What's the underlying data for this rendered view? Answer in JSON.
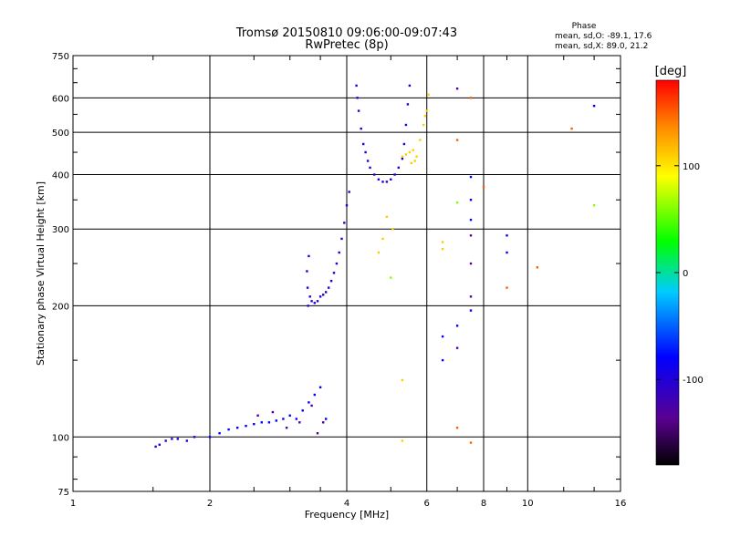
{
  "chart_data": {
    "type": "scatter",
    "title": "Tromsø 20150810 09:06:00-09:07:43",
    "subtitle": "RwPretec (8p)",
    "xlabel": "Frequency [MHz]",
    "ylabel": "Stationary phase Virtual Height [km]",
    "x_scale": "log",
    "y_scale": "log",
    "xlim": [
      1,
      16
    ],
    "ylim": [
      75,
      750
    ],
    "x_ticks": [
      {
        "value": 1,
        "label": "1"
      },
      {
        "value": 2,
        "label": "2"
      },
      {
        "value": 4,
        "label": "4"
      },
      {
        "value": 6,
        "label": "6"
      },
      {
        "value": 8,
        "label": "8"
      },
      {
        "value": 10,
        "label": "10"
      },
      {
        "value": 16,
        "label": "16"
      }
    ],
    "y_ticks": [
      {
        "value": 75,
        "label": "75"
      },
      {
        "value": 100,
        "label": "100"
      },
      {
        "value": 200,
        "label": "200"
      },
      {
        "value": 300,
        "label": "300"
      },
      {
        "value": 400,
        "label": "400"
      },
      {
        "value": 500,
        "label": "500"
      },
      {
        "value": 600,
        "label": "600"
      },
      {
        "value": 750,
        "label": "750"
      }
    ],
    "grid": true,
    "phase_stats": {
      "heading": "Phase",
      "line_o": "mean, sd,O: -89.1, 17.6",
      "line_x": "mean, sd,X:  89.0, 21.2"
    },
    "colorbar": {
      "label": "[deg]",
      "range": [
        -180,
        180
      ],
      "ticks": [
        {
          "value": 100,
          "label": "100"
        },
        {
          "value": 0,
          "label": "0"
        },
        {
          "value": -100,
          "label": "-100"
        }
      ],
      "colormap": "rainbow"
    },
    "series": [
      {
        "note_phase_deg": -100,
        "points": [
          [
            1.52,
            95
          ],
          [
            1.55,
            96
          ],
          [
            1.6,
            98
          ],
          [
            1.65,
            99
          ],
          [
            1.7,
            99
          ],
          [
            1.78,
            98
          ],
          [
            1.85,
            100
          ],
          [
            3.27,
            240
          ],
          [
            3.28,
            220
          ],
          [
            3.29,
            200
          ],
          [
            3.3,
            260
          ],
          [
            3.32,
            210
          ],
          [
            3.35,
            205
          ],
          [
            3.4,
            203
          ],
          [
            3.45,
            205
          ],
          [
            3.5,
            210
          ],
          [
            3.55,
            212
          ],
          [
            3.6,
            215
          ],
          [
            3.65,
            220
          ],
          [
            3.7,
            228
          ],
          [
            3.75,
            238
          ],
          [
            3.8,
            250
          ],
          [
            3.85,
            265
          ],
          [
            3.9,
            285
          ],
          [
            3.95,
            310
          ],
          [
            4.0,
            340
          ],
          [
            4.05,
            365
          ],
          [
            4.2,
            640
          ],
          [
            4.22,
            600
          ],
          [
            4.25,
            560
          ],
          [
            4.3,
            510
          ],
          [
            4.35,
            470
          ],
          [
            4.4,
            450
          ],
          [
            4.45,
            430
          ],
          [
            4.5,
            415
          ],
          [
            4.6,
            400
          ],
          [
            4.7,
            390
          ],
          [
            4.8,
            385
          ],
          [
            4.9,
            385
          ],
          [
            5.0,
            390
          ],
          [
            5.1,
            400
          ],
          [
            5.2,
            415
          ],
          [
            5.3,
            435
          ],
          [
            5.35,
            470
          ],
          [
            5.4,
            520
          ],
          [
            5.45,
            580
          ],
          [
            5.5,
            640
          ]
        ]
      },
      {
        "note_phase_deg": -80,
        "points": [
          [
            2.0,
            100
          ],
          [
            2.1,
            102
          ],
          [
            2.2,
            104
          ],
          [
            2.3,
            105
          ],
          [
            2.4,
            106
          ],
          [
            2.5,
            107
          ],
          [
            2.6,
            108
          ],
          [
            2.7,
            108
          ],
          [
            2.8,
            109
          ],
          [
            2.9,
            110
          ],
          [
            3.0,
            112
          ],
          [
            3.1,
            110
          ],
          [
            3.2,
            115
          ],
          [
            3.3,
            120
          ],
          [
            3.4,
            125
          ],
          [
            3.5,
            130
          ],
          [
            3.6,
            110
          ],
          [
            6.5,
            150
          ],
          [
            6.5,
            170
          ],
          [
            7.0,
            180
          ],
          [
            7.5,
            195
          ],
          [
            7.5,
            315
          ],
          [
            7.5,
            350
          ],
          [
            7.5,
            395
          ],
          [
            9.0,
            265
          ],
          [
            9.0,
            290
          ],
          [
            14.0,
            575
          ]
        ]
      },
      {
        "note_phase_deg": -130,
        "points": [
          [
            2.55,
            112
          ],
          [
            2.75,
            114
          ],
          [
            2.95,
            105
          ],
          [
            3.15,
            108
          ],
          [
            3.35,
            118
          ],
          [
            3.45,
            102
          ],
          [
            3.55,
            108
          ],
          [
            7.0,
            160
          ],
          [
            7.5,
            210
          ],
          [
            7.5,
            250
          ],
          [
            7.0,
            630
          ],
          [
            7.5,
            290
          ]
        ]
      },
      {
        "note_phase_deg": 110,
        "points": [
          [
            5.3,
            440
          ],
          [
            5.4,
            445
          ],
          [
            5.5,
            450
          ],
          [
            5.6,
            455
          ],
          [
            5.7,
            440
          ],
          [
            5.8,
            480
          ],
          [
            5.9,
            520
          ],
          [
            6.0,
            560
          ],
          [
            6.05,
            610
          ],
          [
            5.95,
            545
          ],
          [
            5.65,
            430
          ],
          [
            5.55,
            425
          ],
          [
            4.7,
            265
          ],
          [
            4.8,
            285
          ],
          [
            4.9,
            320
          ],
          [
            5.05,
            300
          ],
          [
            6.5,
            280
          ],
          [
            6.5,
            270
          ],
          [
            5.3,
            135
          ],
          [
            5.3,
            98
          ]
        ]
      },
      {
        "note_phase_deg": 150,
        "points": [
          [
            7.0,
            480
          ],
          [
            8.0,
            375
          ],
          [
            7.5,
            600
          ],
          [
            7.0,
            105
          ],
          [
            7.5,
            97
          ],
          [
            9.0,
            220
          ],
          [
            10.5,
            245
          ],
          [
            12.5,
            510
          ]
        ]
      },
      {
        "note_phase_deg": 60,
        "points": [
          [
            5.0,
            232
          ],
          [
            7.0,
            345
          ],
          [
            14.0,
            340
          ]
        ]
      }
    ]
  }
}
